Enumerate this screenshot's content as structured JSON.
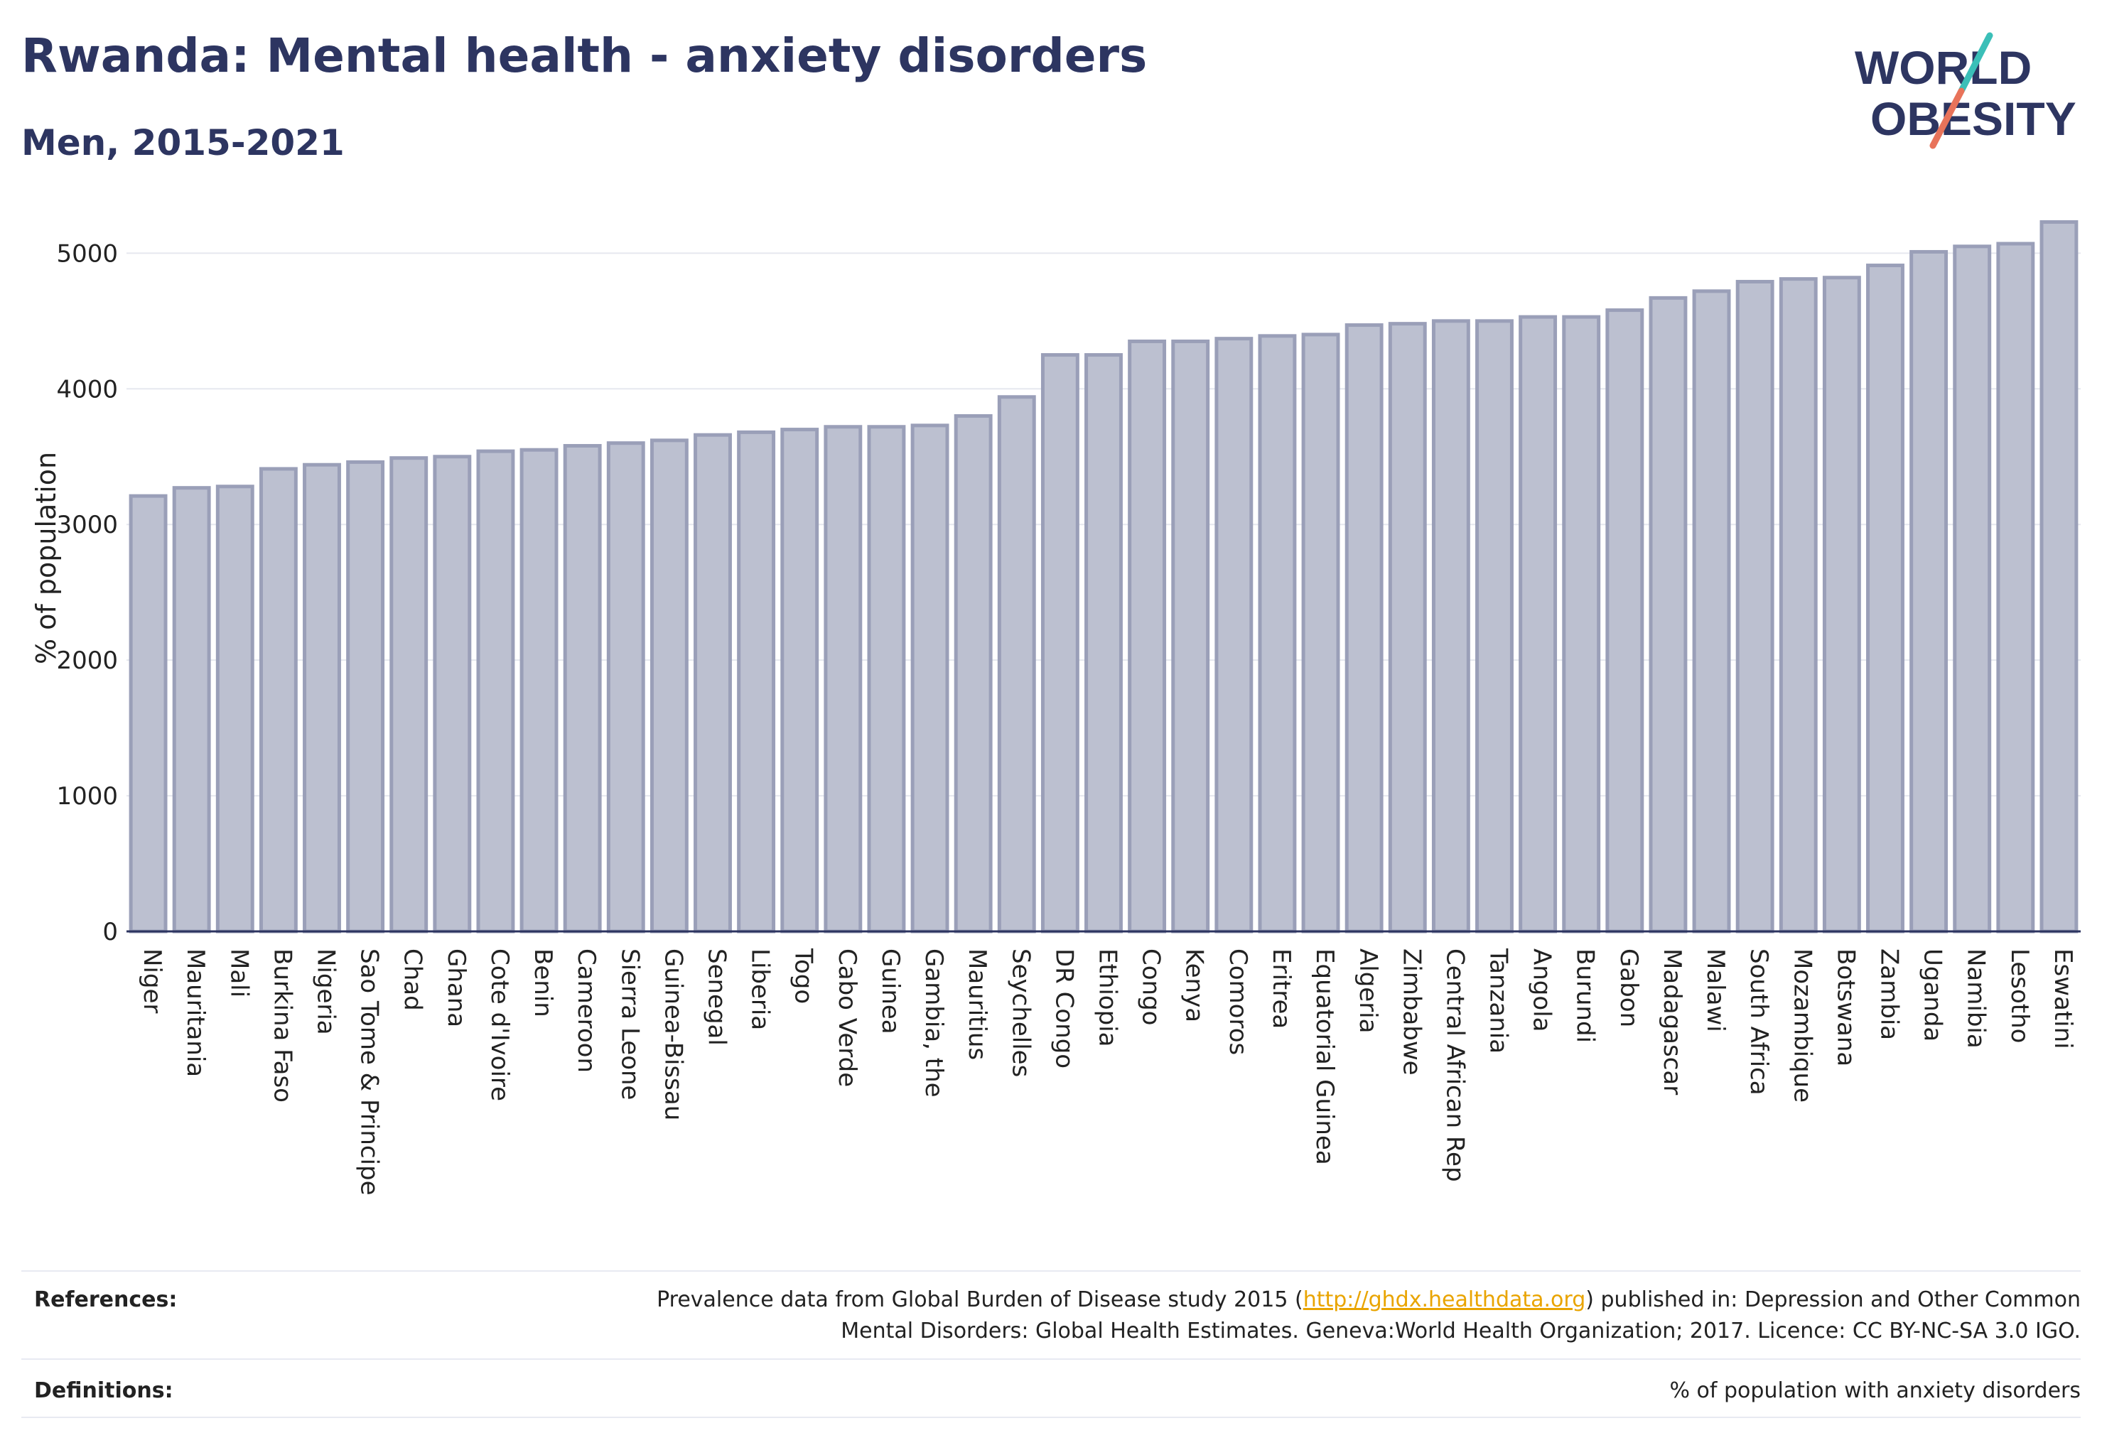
{
  "header": {
    "title": "Rwanda: Mental health - anxiety disorders",
    "subtitle": "Men, 2015-2021"
  },
  "logo": {
    "line1": "WORLD",
    "line2": "OBESITY"
  },
  "colors": {
    "brand_navy": "#2d3561",
    "bar_fill": "#bcc0d0",
    "bar_stroke": "#9a9fb8",
    "logo_teal": "#3bbfb8",
    "logo_coral": "#e8735a",
    "link": "#e9a400"
  },
  "chart_data": {
    "type": "bar",
    "title": "Rwanda: Mental health - anxiety disorders",
    "subtitle": "Men, 2015-2021",
    "xlabel": "",
    "ylabel": "% of population",
    "ylim": [
      0,
      5400
    ],
    "yticks": [
      0,
      1000,
      2000,
      3000,
      4000,
      5000
    ],
    "grid": true,
    "categories": [
      "Niger",
      "Mauritania",
      "Mali",
      "Burkina Faso",
      "Nigeria",
      "Sao Tome & Principe",
      "Chad",
      "Ghana",
      "Cote d'Ivoire",
      "Benin",
      "Cameroon",
      "Sierra Leone",
      "Guinea-Bissau",
      "Senegal",
      "Liberia",
      "Togo",
      "Cabo Verde",
      "Guinea",
      "Gambia, the",
      "Mauritius",
      "Seychelles",
      "DR Congo",
      "Ethiopia",
      "Congo",
      "Kenya",
      "Comoros",
      "Eritrea",
      "Equatorial Guinea",
      "Algeria",
      "Zimbabwe",
      "Central African Rep",
      "Tanzania",
      "Angola",
      "Burundi",
      "Gabon",
      "Madagascar",
      "Malawi",
      "South Africa",
      "Mozambique",
      "Botswana",
      "Zambia",
      "Uganda",
      "Namibia",
      "Lesotho",
      "Eswatini"
    ],
    "values": [
      3210,
      3270,
      3280,
      3410,
      3440,
      3460,
      3490,
      3500,
      3540,
      3550,
      3580,
      3600,
      3620,
      3660,
      3680,
      3700,
      3720,
      3720,
      3730,
      3800,
      3940,
      4250,
      4250,
      4350,
      4350,
      4370,
      4390,
      4400,
      4470,
      4480,
      4500,
      4500,
      4530,
      4530,
      4580,
      4670,
      4720,
      4790,
      4810,
      4820,
      4910,
      5010,
      5050,
      5070,
      5230
    ]
  },
  "footer": {
    "references_label": "References:",
    "references_pre": "Prevalence data from Global Burden of Disease study 2015 (",
    "references_link": "http://ghdx.healthdata.org",
    "references_post": ") published in: Depression and Other Common",
    "references_line2": "Mental Disorders: Global Health Estimates. Geneva:World Health Organization; 2017. Licence: CC BY-NC-SA 3.0 IGO.",
    "definitions_label": "Definitions:",
    "definitions_text": "% of population with anxiety disorders"
  }
}
